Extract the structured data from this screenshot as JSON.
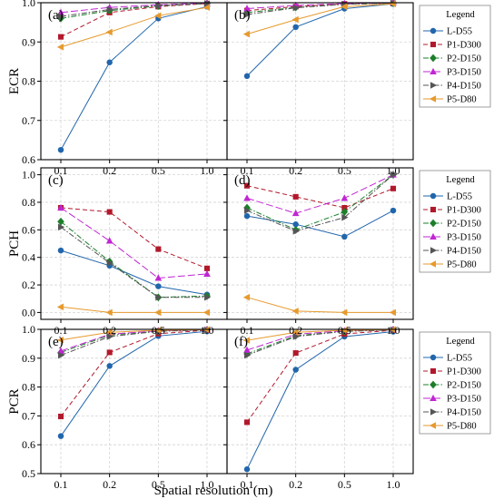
{
  "figure": {
    "xlabel": "Spatial resolution (m)",
    "row_ylabels": [
      "ECR",
      "PCH",
      "PCR"
    ],
    "legend_title": "Legend"
  },
  "series_styles": [
    {
      "name": "L-D55",
      "color": "#2166ac",
      "marker": "circle",
      "dash": "solid"
    },
    {
      "name": "P1-D300",
      "color": "#b2182b",
      "marker": "square",
      "dash": "dashed"
    },
    {
      "name": "P2-D150",
      "color": "#1b7f2a",
      "marker": "diamond",
      "dash": "dashdot"
    },
    {
      "name": "P3-D150",
      "color": "#c026d3",
      "marker": "triangle-up",
      "dash": "longdash"
    },
    {
      "name": "P4-D150",
      "color": "#555555",
      "marker": "triangle-right",
      "dash": "dashdot"
    },
    {
      "name": "P5-D80",
      "color": "#e69a2e",
      "marker": "triangle-left",
      "dash": "solid"
    }
  ],
  "chart_data": [
    {
      "type": "line",
      "panel_label": "(a)",
      "ylabel": "ECR",
      "categories": [
        "0.1",
        "0.2",
        "0.5",
        "1.0"
      ],
      "ylim": [
        0.6,
        1.0
      ],
      "yticks": [
        "0.6",
        "0.7",
        "0.8",
        "0.9",
        "1.0"
      ],
      "grid": true,
      "series": [
        {
          "name": "L-D55",
          "values": [
            0.625,
            0.848,
            0.96,
            0.99
          ]
        },
        {
          "name": "P1-D300",
          "values": [
            0.913,
            0.975,
            0.99,
            0.998
          ]
        },
        {
          "name": "P2-D150",
          "values": [
            0.96,
            0.98,
            0.992,
            0.998
          ]
        },
        {
          "name": "P3-D150",
          "values": [
            0.975,
            0.988,
            0.995,
            0.999
          ]
        },
        {
          "name": "P4-D150",
          "values": [
            0.965,
            0.983,
            0.993,
            0.998
          ]
        },
        {
          "name": "P5-D80",
          "values": [
            0.887,
            0.925,
            0.967,
            0.988
          ]
        }
      ]
    },
    {
      "type": "line",
      "panel_label": "(b)",
      "ylabel": "",
      "categories": [
        "0.1",
        "0.2",
        "0.5",
        "1.0"
      ],
      "ylim": [
        0.6,
        1.0
      ],
      "yticks": [],
      "grid": true,
      "series": [
        {
          "name": "L-D55",
          "values": [
            0.813,
            0.938,
            0.985,
            0.997
          ]
        },
        {
          "name": "P1-D300",
          "values": [
            0.98,
            0.99,
            0.997,
            0.999
          ]
        },
        {
          "name": "P2-D150",
          "values": [
            0.975,
            0.988,
            0.996,
            0.999
          ]
        },
        {
          "name": "P3-D150",
          "values": [
            0.985,
            0.993,
            0.998,
            1.0
          ]
        },
        {
          "name": "P4-D150",
          "values": [
            0.97,
            0.987,
            0.996,
            0.999
          ]
        },
        {
          "name": "P5-D80",
          "values": [
            0.92,
            0.957,
            0.99,
            0.997
          ]
        }
      ]
    },
    {
      "type": "line",
      "panel_label": "(c)",
      "ylabel": "PCH",
      "categories": [
        "0.1",
        "0.2",
        "0.5",
        "1.0"
      ],
      "ylim": [
        -0.05,
        1.05
      ],
      "yticks": [
        "0.0",
        "0.2",
        "0.4",
        "0.6",
        "0.8",
        "1.0"
      ],
      "grid": true,
      "series": [
        {
          "name": "L-D55",
          "values": [
            0.45,
            0.34,
            0.19,
            0.13
          ]
        },
        {
          "name": "P1-D300",
          "values": [
            0.76,
            0.73,
            0.46,
            0.32
          ]
        },
        {
          "name": "P2-D150",
          "values": [
            0.66,
            0.37,
            0.11,
            0.12
          ]
        },
        {
          "name": "P3-D150",
          "values": [
            0.76,
            0.52,
            0.25,
            0.28
          ]
        },
        {
          "name": "P4-D150",
          "values": [
            0.62,
            0.36,
            0.11,
            0.11
          ]
        },
        {
          "name": "P5-D80",
          "values": [
            0.04,
            0.0,
            0.0,
            0.0
          ]
        }
      ]
    },
    {
      "type": "line",
      "panel_label": "(d)",
      "ylabel": "",
      "categories": [
        "0.1",
        "0.2",
        "0.5",
        "1.0"
      ],
      "ylim": [
        -0.05,
        1.05
      ],
      "yticks": [],
      "grid": true,
      "series": [
        {
          "name": "L-D55",
          "values": [
            0.7,
            0.64,
            0.55,
            0.74
          ]
        },
        {
          "name": "P1-D300",
          "values": [
            0.92,
            0.84,
            0.76,
            0.9
          ]
        },
        {
          "name": "P2-D150",
          "values": [
            0.76,
            0.6,
            0.73,
            1.0
          ]
        },
        {
          "name": "P3-D150",
          "values": [
            0.83,
            0.72,
            0.83,
            1.0
          ]
        },
        {
          "name": "P4-D150",
          "values": [
            0.74,
            0.59,
            0.69,
            1.0
          ]
        },
        {
          "name": "P5-D80",
          "values": [
            0.11,
            0.01,
            0.0,
            0.0
          ]
        }
      ]
    },
    {
      "type": "line",
      "panel_label": "(e)",
      "ylabel": "PCR",
      "categories": [
        "0.1",
        "0.2",
        "0.5",
        "1.0"
      ],
      "ylim": [
        0.5,
        1.0
      ],
      "yticks": [
        "0.5",
        "0.6",
        "0.7",
        "0.8",
        "0.9",
        "1.0"
      ],
      "grid": true,
      "series": [
        {
          "name": "L-D55",
          "values": [
            0.63,
            0.873,
            0.977,
            0.993
          ]
        },
        {
          "name": "P1-D300",
          "values": [
            0.698,
            0.92,
            0.985,
            0.997
          ]
        },
        {
          "name": "P2-D150",
          "values": [
            0.92,
            0.98,
            0.994,
            0.998
          ]
        },
        {
          "name": "P3-D150",
          "values": [
            0.925,
            0.983,
            0.995,
            0.999
          ]
        },
        {
          "name": "P4-D150",
          "values": [
            0.91,
            0.975,
            0.993,
            0.998
          ]
        },
        {
          "name": "P5-D80",
          "values": [
            0.963,
            0.99,
            0.997,
            0.999
          ]
        }
      ]
    },
    {
      "type": "line",
      "panel_label": "(f)",
      "ylabel": "",
      "categories": [
        "0.1",
        "0.2",
        "0.5",
        "1.0"
      ],
      "ylim": [
        0.5,
        1.0
      ],
      "yticks": [],
      "grid": true,
      "series": [
        {
          "name": "L-D55",
          "values": [
            0.515,
            0.86,
            0.975,
            0.992
          ]
        },
        {
          "name": "P1-D300",
          "values": [
            0.678,
            0.918,
            0.984,
            0.997
          ]
        },
        {
          "name": "P2-D150",
          "values": [
            0.915,
            0.978,
            0.993,
            0.998
          ]
        },
        {
          "name": "P3-D150",
          "values": [
            0.928,
            0.983,
            0.995,
            0.999
          ]
        },
        {
          "name": "P4-D150",
          "values": [
            0.91,
            0.975,
            0.993,
            0.998
          ]
        },
        {
          "name": "P5-D80",
          "values": [
            0.962,
            0.99,
            0.997,
            0.999
          ]
        }
      ]
    }
  ]
}
